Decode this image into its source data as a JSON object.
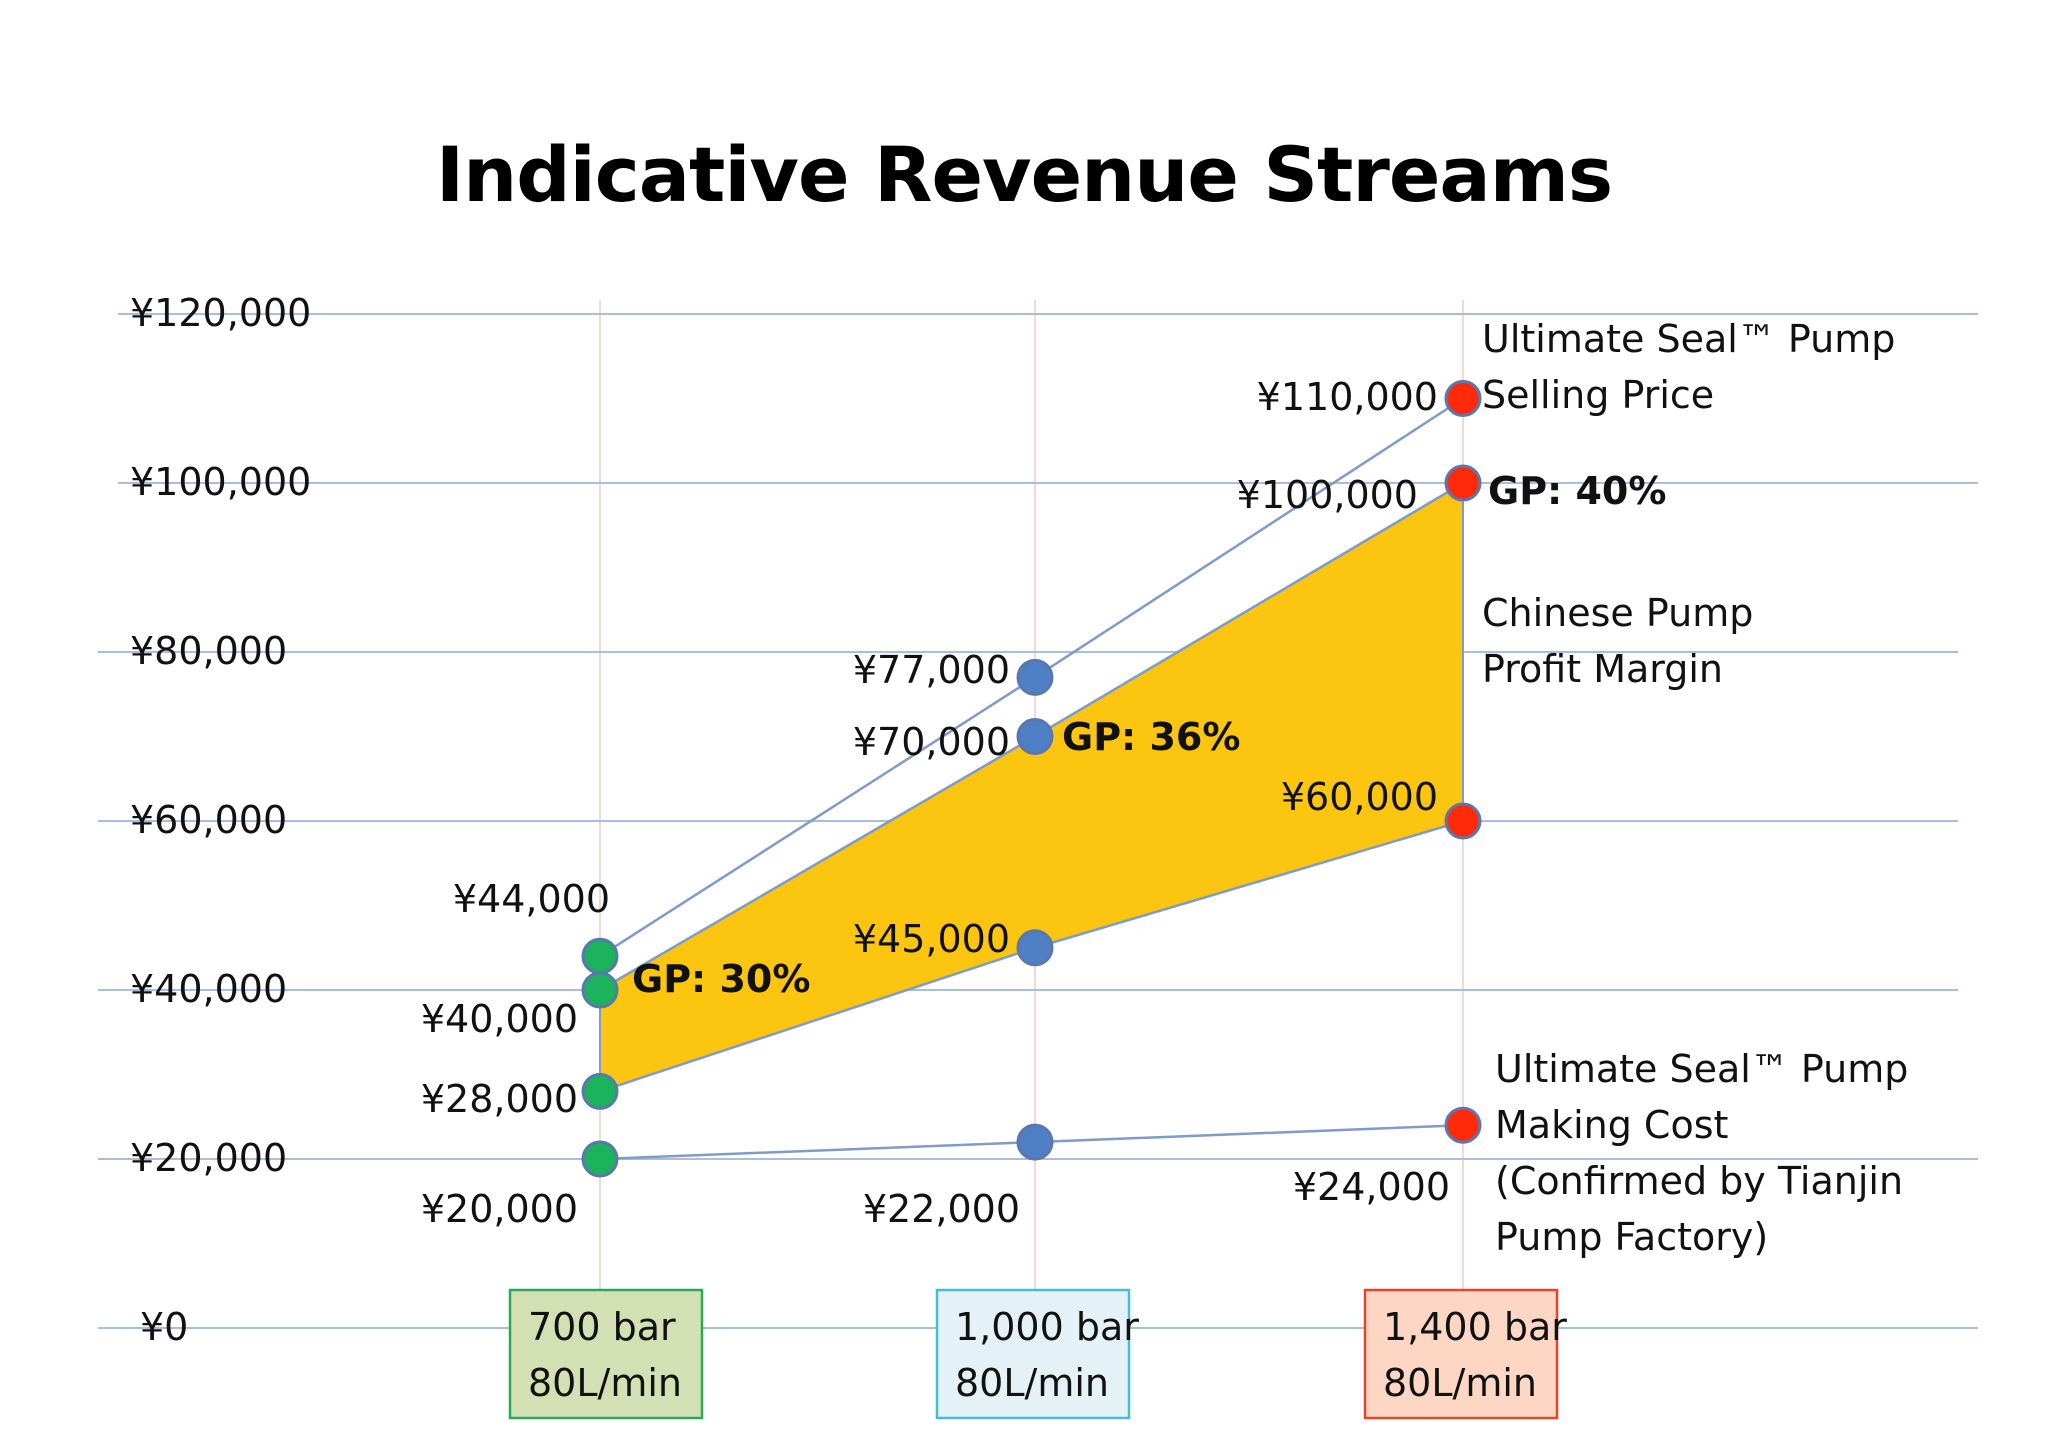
{
  "chart_data": {
    "type": "line",
    "title": "Indicative Revenue Streams",
    "ylim": [
      0,
      120000
    ],
    "yticks": [
      "¥0",
      "¥20,000",
      "¥40,000",
      "¥60,000",
      "¥80,000",
      "¥100,000",
      "¥120,000"
    ],
    "ytick_values": [
      0,
      20000,
      40000,
      60000,
      80000,
      100000,
      120000
    ],
    "categories": [
      {
        "lines": [
          "700 bar",
          "80L/min"
        ],
        "fill": "#d3e0b3",
        "border": "#2aa85a",
        "point_color": "#1bb35b"
      },
      {
        "lines": [
          "1,000 bar",
          "80L/min"
        ],
        "fill": "#e4f2f7",
        "border": "#45bcd9",
        "point_color": "#4f7fc4"
      },
      {
        "lines": [
          "1,400 bar",
          "80L/min"
        ],
        "fill": "#fdd7c4",
        "border": "#e8442a",
        "point_color": "#ff2a0a"
      }
    ],
    "series": [
      {
        "name": "Ultimate Seal™ Pump Selling Price",
        "values": [
          44000,
          77000,
          110000
        ],
        "labels": [
          "¥44,000",
          "¥77,000",
          "¥110,000"
        ]
      },
      {
        "name": "",
        "values": [
          40000,
          70000,
          100000
        ],
        "labels": [
          "¥40,000",
          "¥70,000",
          "¥100,000"
        ]
      },
      {
        "name": "",
        "values": [
          28000,
          45000,
          60000
        ],
        "labels": [
          "¥28,000",
          "¥45,000",
          "¥60,000"
        ]
      },
      {
        "name": "Ultimate Seal™ Pump Making Cost (Confirmed by Tianjin Pump Factory)",
        "values": [
          20000,
          22000,
          24000
        ],
        "labels": [
          "¥20,000",
          "¥22,000",
          "¥24,000"
        ]
      }
    ],
    "gp_labels": [
      "GP: 30%",
      "GP: 36%",
      "GP: 40%"
    ],
    "annotations": {
      "selling_price": [
        "Ultimate Seal™ Pump",
        "Selling Price"
      ],
      "chinese_margin": [
        "Chinese Pump",
        "Profit Margin"
      ],
      "making_cost": [
        "Ultimate Seal™ Pump",
        "Making Cost",
        "(Confirmed by Tianjin",
        "Pump Factory)"
      ]
    },
    "colors": {
      "band_fill": "#fcc50f",
      "line": "#7f9bc6",
      "gridline": "#a9bedd",
      "vertical_grid": "#f1cccc"
    },
    "grid": true
  }
}
